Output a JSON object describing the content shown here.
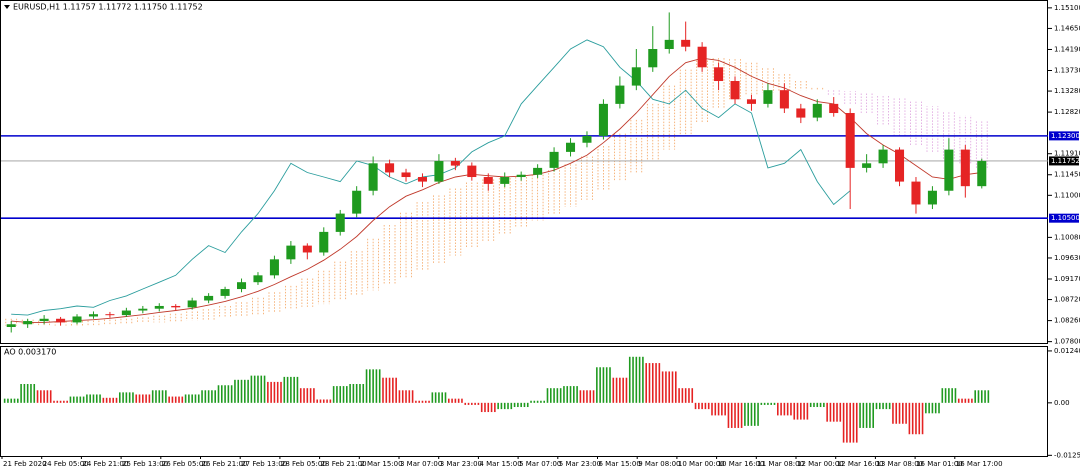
{
  "chart_data": [
    {
      "type": "candlestick",
      "title": "EURUSD,H1  1.11757 1.11772 1.11750 1.11752",
      "up_color": "#1f9a1f",
      "down_color": "#e52424",
      "wick_color": "#333333",
      "open": [
        1.0812,
        1.0818,
        1.0825,
        1.083,
        1.0822,
        1.0835,
        1.084,
        1.0838,
        1.0848,
        1.0852,
        1.0858,
        1.0855,
        1.087,
        1.088,
        1.0895,
        1.091,
        1.0925,
        1.096,
        1.099,
        1.0975,
        1.102,
        1.106,
        1.111,
        1.117,
        1.115,
        1.114,
        1.113,
        1.1175,
        1.1165,
        1.114,
        1.1125,
        1.114,
        1.1145,
        1.116,
        1.1195,
        1.1215,
        1.123,
        1.13,
        1.134,
        1.138,
        1.142,
        1.144,
        1.1425,
        1.138,
        1.135,
        1.131,
        1.13,
        1.133,
        1.129,
        1.127,
        1.13,
        1.128,
        1.116,
        1.117,
        1.12,
        1.113,
        1.108,
        1.111,
        1.12,
        1.112
      ],
      "high": [
        1.0825,
        1.083,
        1.0838,
        1.0834,
        1.084,
        1.0846,
        1.0845,
        1.0854,
        1.0858,
        1.0864,
        1.0862,
        1.0876,
        1.0886,
        1.09,
        1.0918,
        1.0932,
        1.0968,
        1.1,
        1.0995,
        1.103,
        1.1068,
        1.112,
        1.1185,
        1.1178,
        1.1158,
        1.1148,
        1.119,
        1.1182,
        1.1172,
        1.1148,
        1.115,
        1.1152,
        1.1168,
        1.1205,
        1.1225,
        1.124,
        1.131,
        1.136,
        1.142,
        1.147,
        1.15,
        1.148,
        1.1435,
        1.139,
        1.136,
        1.132,
        1.1345,
        1.1345,
        1.13,
        1.131,
        1.1315,
        1.129,
        1.119,
        1.121,
        1.1205,
        1.114,
        1.112,
        1.1225,
        1.121,
        1.118
      ],
      "low": [
        1.08,
        1.081,
        1.0818,
        1.0815,
        1.0818,
        1.083,
        1.0832,
        1.0834,
        1.0842,
        1.0846,
        1.0848,
        1.085,
        1.0864,
        1.0874,
        1.0888,
        1.0904,
        1.0918,
        1.095,
        1.096,
        1.0968,
        1.1012,
        1.1052,
        1.11,
        1.114,
        1.113,
        1.1118,
        1.1125,
        1.1155,
        1.1132,
        1.111,
        1.1118,
        1.1132,
        1.1138,
        1.1152,
        1.1185,
        1.1205,
        1.1222,
        1.129,
        1.133,
        1.137,
        1.141,
        1.1415,
        1.137,
        1.133,
        1.13,
        1.1285,
        1.1292,
        1.128,
        1.1258,
        1.1262,
        1.1272,
        1.107,
        1.115,
        1.116,
        1.112,
        1.106,
        1.107,
        1.11,
        1.1095,
        1.1115
      ],
      "close": [
        1.0818,
        1.0825,
        1.083,
        1.0822,
        1.0835,
        1.084,
        1.0838,
        1.0848,
        1.0852,
        1.0858,
        1.0855,
        1.087,
        1.088,
        1.0895,
        1.091,
        1.0925,
        1.096,
        1.099,
        1.0975,
        1.102,
        1.106,
        1.111,
        1.117,
        1.115,
        1.114,
        1.113,
        1.1175,
        1.1165,
        1.114,
        1.1125,
        1.114,
        1.1145,
        1.116,
        1.1195,
        1.1215,
        1.123,
        1.13,
        1.134,
        1.138,
        1.142,
        1.144,
        1.1425,
        1.138,
        1.135,
        1.131,
        1.13,
        1.133,
        1.129,
        1.127,
        1.13,
        1.128,
        1.116,
        1.117,
        1.12,
        1.113,
        1.108,
        1.111,
        1.12,
        1.112,
        1.1175
      ],
      "cloud": {
        "up_color": "#f4a460",
        "down_color": "#dda0dd",
        "span_a": [
          1.083,
          1.0828,
          1.0826,
          1.0824,
          1.0825,
          1.0826,
          1.0828,
          1.083,
          1.0833,
          1.0837,
          1.0841,
          1.0846,
          1.0851,
          1.0858,
          1.0866,
          1.0876,
          1.0888,
          1.0902,
          1.0918,
          1.0935,
          1.0955,
          1.0978,
          1.1005,
          1.1035,
          1.1062,
          1.1085,
          1.11,
          1.1115,
          1.1128,
          1.1135,
          1.1138,
          1.114,
          1.1145,
          1.1155,
          1.1168,
          1.1185,
          1.1208,
          1.1235,
          1.1265,
          1.13,
          1.134,
          1.1375,
          1.1395,
          1.14,
          1.1398,
          1.139,
          1.1378,
          1.1365,
          1.135,
          1.1335,
          1.132,
          1.13,
          1.128,
          1.1255,
          1.123,
          1.121,
          1.1195,
          1.118,
          1.117,
          1.116
        ],
        "span_b": [
          1.0815,
          1.0815,
          1.0815,
          1.0815,
          1.0815,
          1.0815,
          1.0815,
          1.0818,
          1.082,
          1.0822,
          1.0824,
          1.0826,
          1.0828,
          1.0832,
          1.0836,
          1.084,
          1.0845,
          1.085,
          1.0856,
          1.0862,
          1.087,
          1.088,
          1.0892,
          1.0905,
          1.092,
          1.0935,
          1.095,
          1.0968,
          1.0985,
          1.1,
          1.1015,
          1.103,
          1.1045,
          1.106,
          1.1075,
          1.109,
          1.111,
          1.113,
          1.115,
          1.1175,
          1.12,
          1.123,
          1.126,
          1.129,
          1.131,
          1.132,
          1.1325,
          1.1328,
          1.133,
          1.133,
          1.133,
          1.1328,
          1.1325,
          1.132,
          1.1315,
          1.1305,
          1.1295,
          1.1285,
          1.1275,
          1.1265
        ]
      },
      "lines": [
        {
          "color": "#c0392b",
          "values": [
            1.0825,
            1.0822,
            1.0822,
            1.0824,
            1.0826,
            1.0828,
            1.0831,
            1.0835,
            1.0839,
            1.0844,
            1.0848,
            1.0853,
            1.086,
            1.0868,
            1.0878,
            1.089,
            1.0905,
            1.0922,
            1.0938,
            1.0958,
            1.0982,
            1.101,
            1.1045,
            1.1075,
            1.1098,
            1.1112,
            1.1128,
            1.114,
            1.1146,
            1.1143,
            1.114,
            1.1142,
            1.1146,
            1.1155,
            1.117,
            1.1188,
            1.1215,
            1.1245,
            1.128,
            1.132,
            1.136,
            1.139,
            1.14,
            1.1395,
            1.138,
            1.136,
            1.1345,
            1.1335,
            1.1318,
            1.1305,
            1.13,
            1.127,
            1.1235,
            1.121,
            1.119,
            1.1165,
            1.114,
            1.1135,
            1.1145,
            1.115
          ]
        },
        {
          "color": "#2a9d9d",
          "values": [
            1.084,
            1.0838,
            1.0848,
            1.0852,
            1.0858,
            1.0855,
            1.087,
            1.088,
            1.0895,
            1.091,
            1.0925,
            1.096,
            1.099,
            1.0975,
            1.102,
            1.106,
            1.111,
            1.117,
            1.115,
            1.114,
            1.113,
            1.1175,
            1.1165,
            1.114,
            1.1125,
            1.114,
            1.1145,
            1.116,
            1.1195,
            1.1215,
            1.123,
            1.13,
            1.134,
            1.138,
            1.142,
            1.144,
            1.1425,
            1.138,
            1.135,
            1.131,
            1.13,
            1.133,
            1.129,
            1.127,
            1.13,
            1.128,
            1.116,
            1.117,
            1.12,
            1.113,
            1.108,
            1.111,
            null,
            null,
            null,
            null,
            null,
            null,
            null,
            null
          ]
        }
      ],
      "hlines": [
        {
          "value": 1.123,
          "label": "1.12300",
          "color": "#0000cd"
        },
        {
          "value": 1.105,
          "label": "1.10500",
          "color": "#0000cd"
        },
        {
          "value": 1.11752,
          "label": "1.11752",
          "color": "#9a9a9a"
        }
      ],
      "ylim": [
        1.0777,
        1.1525
      ],
      "yticks": [
        {
          "value": 1.151,
          "label": "1.15100"
        },
        {
          "value": 1.1465,
          "label": "1.14650"
        },
        {
          "value": 1.1419,
          "label": "1.14190"
        },
        {
          "value": 1.1373,
          "label": "1.13730"
        },
        {
          "value": 1.1328,
          "label": "1.13280"
        },
        {
          "value": 1.1282,
          "label": "1.12820"
        },
        {
          "value": 1.1191,
          "label": "1.11910"
        },
        {
          "value": 1.1145,
          "label": "1.11450"
        },
        {
          "value": 1.11,
          "label": "1.11000"
        },
        {
          "value": 1.1008,
          "label": "1.10080"
        },
        {
          "value": 1.0963,
          "label": "1.09630"
        },
        {
          "value": 1.0917,
          "label": "1.09170"
        },
        {
          "value": 1.0872,
          "label": "1.08720"
        },
        {
          "value": 1.0826,
          "label": "1.08260"
        },
        {
          "value": 1.078,
          "label": "1.07800"
        }
      ]
    },
    {
      "type": "bar",
      "title": "AO 0.003170",
      "up_color": "#1f9a1f",
      "down_color": "#e52222",
      "values": [
        0.001,
        0.0045,
        0.003,
        0.0005,
        0.0015,
        0.002,
        0.0012,
        0.0025,
        0.002,
        0.003,
        0.0015,
        0.002,
        0.003,
        0.0042,
        0.0055,
        0.0065,
        0.005,
        0.0062,
        0.0035,
        0.0008,
        0.004,
        0.0045,
        0.008,
        0.006,
        0.003,
        0.0005,
        0.0025,
        0.001,
        -0.0005,
        -0.0022,
        -0.0015,
        -0.001,
        0.0005,
        0.0035,
        0.004,
        0.003,
        0.0085,
        0.006,
        0.011,
        0.0095,
        0.0075,
        0.0035,
        -0.0015,
        -0.003,
        -0.006,
        -0.0055,
        -0.0005,
        -0.003,
        -0.004,
        -0.001,
        -0.0045,
        -0.0095,
        -0.006,
        -0.0015,
        -0.005,
        -0.0075,
        -0.0025,
        0.0035,
        0.001,
        0.003
      ],
      "ylim": [
        -0.0127,
        0.0131
      ],
      "yticks": [
        0.012403,
        {
          "value": 0,
          "label": "0.00"
        },
        -0.012539
      ],
      "time_labels": [
        "21 Feb 2020",
        "24 Feb 05:00",
        "24 Feb 21:00",
        "25 Feb 13:00",
        "26 Feb 05:00",
        "26 Feb 21:00",
        "27 Feb 13:00",
        "28 Feb 05:00",
        "28 Feb 21:00",
        "2 Mar 15:00",
        "3 Mar 07:00",
        "3 Mar 23:00",
        "4 Mar 15:00",
        "5 Mar 07:00",
        "5 Mar 23:00",
        "6 Mar 15:00",
        "9 Mar 08:00",
        "10 Mar 00:00",
        "10 Mar 16:00",
        "11 Mar 08:00",
        "12 Mar 00:00",
        "12 Mar 16:00",
        "13 Mar 08:00",
        "16 Mar 01:00",
        "16 Mar 17:00"
      ]
    }
  ]
}
